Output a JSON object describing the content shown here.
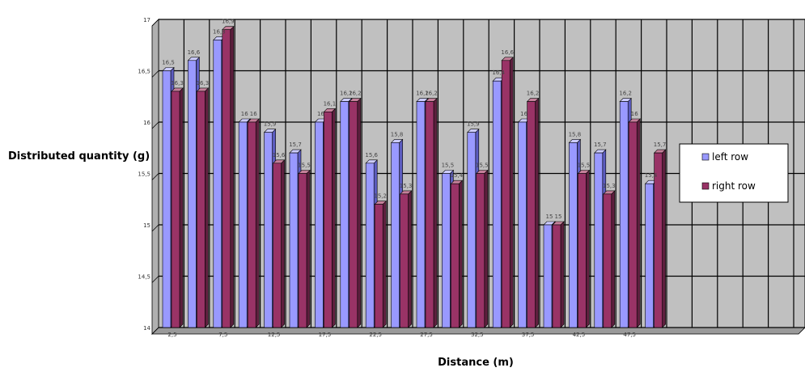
{
  "chart_data": {
    "type": "bar",
    "title": "",
    "xlabel": "Distance (m)",
    "ylabel": "Distributed quantity (g)",
    "ylim": [
      14,
      17
    ],
    "yticks": [
      "14",
      "14,5",
      "15",
      "15,5",
      "16",
      "16,5",
      "17"
    ],
    "grid": true,
    "legend_position": "right",
    "x_positions": 20,
    "categories": [
      "2,5",
      "",
      "7,5",
      "",
      "12,5",
      "",
      "17,5",
      "",
      "22,5",
      "",
      "27,5",
      "",
      "32,5",
      "",
      "37,5",
      "",
      "42,5",
      "",
      "47,5",
      ""
    ],
    "series": [
      {
        "name": "left row",
        "color": "#9999ff",
        "values": [
          16.5,
          16.6,
          16.8,
          16.0,
          15.9,
          15.7,
          16.0,
          16.2,
          15.6,
          15.8,
          16.2,
          15.5,
          15.9,
          16.4,
          16.0,
          15.0,
          15.8,
          15.7,
          16.2,
          15.4
        ],
        "labels": [
          "16,5",
          "16,6",
          "16,8",
          "16",
          "15,9",
          "15,7",
          "16",
          "16,2",
          "15,6",
          "15,8",
          "16,2",
          "15,5",
          "15,9",
          "16,4",
          "16",
          "15",
          "15,8",
          "15,7",
          "16,2",
          "15,4"
        ]
      },
      {
        "name": "right row",
        "color": "#993366",
        "values": [
          16.3,
          16.3,
          16.9,
          16.0,
          15.6,
          15.5,
          16.1,
          16.2,
          15.2,
          15.3,
          16.2,
          15.4,
          15.5,
          16.6,
          16.2,
          15.0,
          15.5,
          15.3,
          16.0,
          15.7
        ],
        "labels": [
          "16,3",
          "16,3",
          "16,9",
          "16",
          "15,6",
          "15,5",
          "16,1",
          "16,2",
          "15,2",
          "15,3",
          "16,2",
          "15,4",
          "15,5",
          "16,6",
          "16,2",
          "15",
          "15,5",
          "15,3",
          "16",
          "15,7"
        ]
      }
    ]
  },
  "colors": {
    "plot_bg": "#c0c0c0",
    "grid": "#000000"
  }
}
